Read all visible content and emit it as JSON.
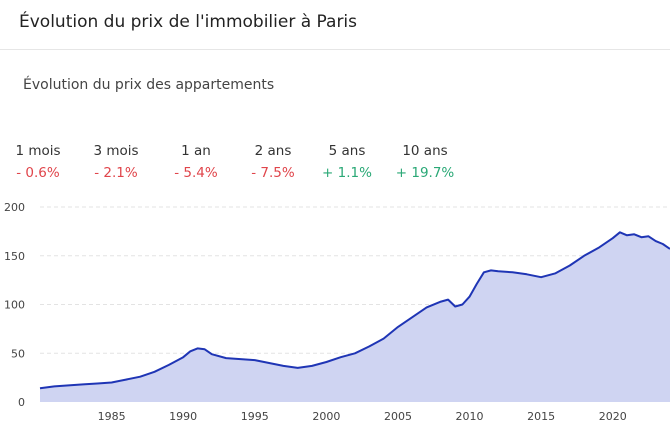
{
  "header": {
    "title": "Évolution du prix de l'immobilier à Paris"
  },
  "subtitle": "Évolution du prix des appartements",
  "periods": [
    {
      "label": "1 mois",
      "value": "- 0.6%",
      "trend": "negative"
    },
    {
      "label": "3 mois",
      "value": "- 2.1%",
      "trend": "negative"
    },
    {
      "label": "1 an",
      "value": "- 5.4%",
      "trend": "negative"
    },
    {
      "label": "2 ans",
      "value": "- 7.5%",
      "trend": "negative"
    },
    {
      "label": "5 ans",
      "value": "+ 1.1%",
      "trend": "positive"
    },
    {
      "label": "10 ans",
      "value": "+ 19.7%",
      "trend": "positive"
    }
  ],
  "colors": {
    "negative": "#e0454b",
    "positive": "#2aa876",
    "line": "#1f35b5",
    "area": "#cfd4f2",
    "grid": "#e3e3e3",
    "axis_text": "#444444"
  },
  "chart_data": {
    "type": "area",
    "title": "",
    "xlabel": "",
    "ylabel": "",
    "xlim": [
      1980,
      2024
    ],
    "ylim": [
      0,
      200
    ],
    "y_ticks": [
      0,
      50,
      100,
      150,
      200
    ],
    "x_ticks": [
      1985,
      1990,
      1995,
      2000,
      2005,
      2010,
      2015,
      2020
    ],
    "grid": "horizontal dashed",
    "legend": "none",
    "x": [
      1980,
      1981,
      1982,
      1983,
      1984,
      1985,
      1986,
      1987,
      1988,
      1989,
      1990,
      1990.5,
      1991,
      1991.5,
      1992,
      1993,
      1994,
      1995,
      1996,
      1997,
      1998,
      1999,
      2000,
      2001,
      2002,
      2003,
      2004,
      2005,
      2006,
      2007,
      2008,
      2008.5,
      2009,
      2009.5,
      2010,
      2010.5,
      2011,
      2011.5,
      2012,
      2013,
      2014,
      2015,
      2016,
      2017,
      2018,
      2019,
      2020,
      2020.5,
      2021,
      2021.5,
      2022,
      2022.5,
      2023,
      2023.5,
      2024
    ],
    "y": [
      14,
      16,
      17,
      18,
      19,
      20,
      23,
      26,
      31,
      38,
      46,
      52,
      55,
      54,
      49,
      45,
      44,
      43,
      40,
      37,
      35,
      37,
      41,
      46,
      50,
      57,
      65,
      77,
      87,
      97,
      103,
      105,
      98,
      100,
      108,
      121,
      133,
      135,
      134,
      133,
      131,
      128,
      132,
      140,
      150,
      158,
      168,
      174,
      171,
      172,
      169,
      170,
      165,
      162,
      157
    ]
  }
}
